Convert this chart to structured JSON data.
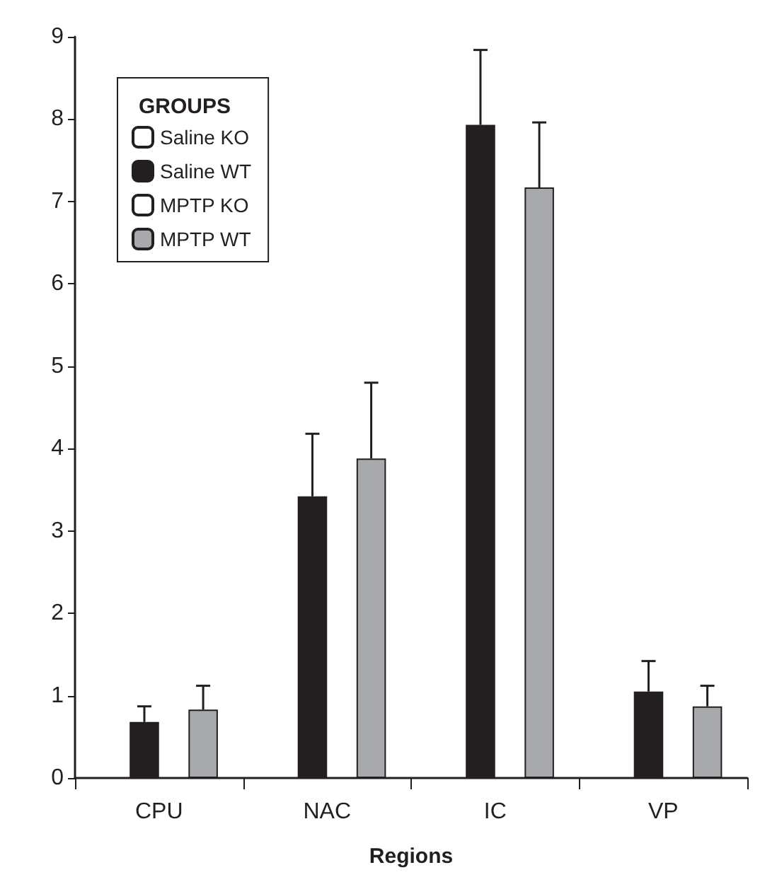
{
  "chart_data": {
    "type": "bar",
    "xlabel": "Regions",
    "legend_title": "GROUPS",
    "categories": [
      "CPU",
      "NAC",
      "IC",
      "VP"
    ],
    "series": [
      {
        "name": "Saline KO",
        "color": "#ffffff",
        "values": [
          null,
          null,
          null,
          null
        ]
      },
      {
        "name": "Saline WT",
        "color": "#231f20",
        "values": [
          0.68,
          3.42,
          7.93,
          1.05
        ],
        "errors": [
          [
            0.68,
            0.87
          ],
          [
            3.42,
            4.18
          ],
          [
            7.93,
            8.84
          ],
          [
            1.05,
            1.42
          ]
        ]
      },
      {
        "name": "MPTP KO",
        "color": "#ffffff",
        "values": [
          null,
          null,
          null,
          null
        ]
      },
      {
        "name": "MPTP WT",
        "color": "#a7a9ac",
        "values": [
          0.83,
          3.88,
          7.17,
          0.87
        ],
        "errors": [
          [
            0.83,
            1.12
          ],
          [
            3.88,
            4.8
          ],
          [
            7.17,
            7.96
          ],
          [
            0.87,
            1.12
          ]
        ]
      }
    ],
    "ylim": [
      0,
      9
    ],
    "yticks": [
      0,
      1,
      2,
      3,
      4,
      5,
      6,
      7,
      8,
      9
    ],
    "grid": false,
    "legend": "top left"
  }
}
